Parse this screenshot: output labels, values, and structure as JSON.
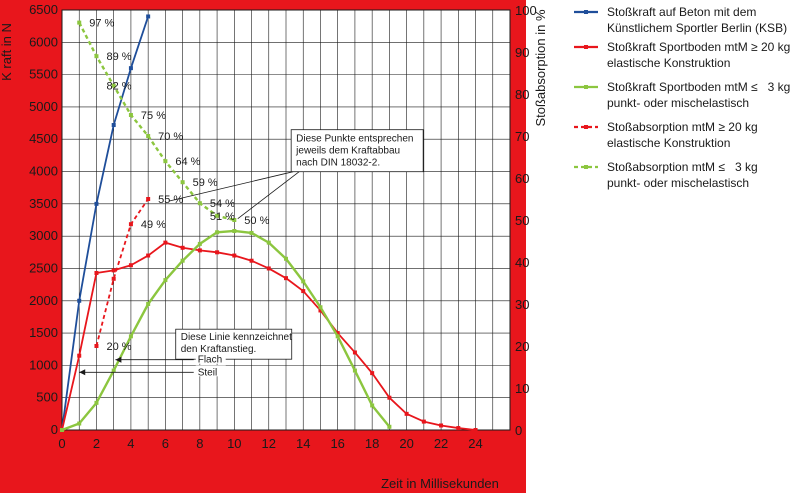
{
  "chart_data": {
    "type": "line",
    "xlabel": "Zeit in Millisekunden",
    "ylabel_left": "K raft in N",
    "ylabel_right": "Stoßabsorption in %",
    "xlim": [
      0,
      26
    ],
    "ylim_left": [
      0,
      6500
    ],
    "ylim_right": [
      0,
      100
    ],
    "x_ticks": [
      0,
      2,
      4,
      6,
      8,
      10,
      12,
      14,
      16,
      18,
      20,
      22,
      24
    ],
    "y_ticks_left": [
      0,
      500,
      1000,
      1500,
      2000,
      2500,
      3000,
      3500,
      4000,
      4500,
      5000,
      5500,
      6000,
      6500
    ],
    "y_ticks_right": [
      0,
      10,
      20,
      30,
      40,
      50,
      60,
      70,
      80,
      90,
      100
    ],
    "grid": true,
    "legend_position": "right",
    "series": [
      {
        "name": "Stoßkraft auf Beton mit dem Künstlichem Sportler Berlin (KSB)",
        "legend_lines": [
          "Stoßkraft auf Beton mit dem",
          "Künstlichem Sportler Berlin (KSB)"
        ],
        "color": "#1f4e9a",
        "dash": "solid",
        "axis": "left",
        "x": [
          0,
          1,
          2,
          3,
          4,
          5
        ],
        "y": [
          0,
          2000,
          3500,
          4720,
          5600,
          6400
        ]
      },
      {
        "name": "Stoßkraft Sportboden mtM ≥ 20 kg elastische Konstruktion",
        "legend_lines": [
          "Stoßkraft Sportboden mtM ≥ 20 kg",
          "elastische Konstruktion"
        ],
        "color": "#e8161c",
        "dash": "solid",
        "axis": "left",
        "x": [
          0,
          1,
          2,
          3,
          4,
          5,
          6,
          7,
          8,
          9,
          10,
          11,
          12,
          13,
          14,
          15,
          16,
          17,
          18,
          19,
          20,
          21,
          22,
          23,
          24
        ],
        "y": [
          0,
          1150,
          2430,
          2470,
          2550,
          2700,
          2900,
          2820,
          2780,
          2750,
          2700,
          2620,
          2500,
          2350,
          2150,
          1850,
          1500,
          1200,
          880,
          500,
          250,
          130,
          70,
          30,
          0
        ]
      },
      {
        "name": "Stoßkraft Sportboden mtM ≤ 3 kg punkt- oder mischelastisch",
        "legend_lines": [
          "Stoßkraft Sportboden mtM ≤   3 kg",
          "punkt- oder mischelastisch"
        ],
        "color": "#8cc63f",
        "dash": "solid",
        "axis": "left",
        "x": [
          0,
          1,
          2,
          3,
          4,
          5,
          6,
          7,
          8,
          9,
          10,
          11,
          12,
          13,
          14,
          15,
          16,
          17,
          18,
          19
        ],
        "y": [
          0,
          100,
          420,
          920,
          1450,
          1950,
          2320,
          2620,
          2880,
          3060,
          3080,
          3050,
          2900,
          2650,
          2300,
          1900,
          1450,
          920,
          380,
          50
        ]
      },
      {
        "name": "Stoßabsorption mtM ≥ 20 kg elastische Konstruktion",
        "legend_lines": [
          "Stoßabsorption mtM ≥ 20 kg",
          "elastische Konstruktion"
        ],
        "color": "#e8161c",
        "dash": "dashed",
        "axis": "right",
        "x": [
          2,
          3,
          4,
          5
        ],
        "y": [
          20,
          36,
          49,
          55
        ]
      },
      {
        "name": "Stoßabsorption mtM ≤ 3 kg punkt- oder mischelastisch",
        "legend_lines": [
          "Stoßabsorption mtM ≤   3 kg",
          "punkt- oder mischelastisch"
        ],
        "color": "#8cc63f",
        "dash": "dashed",
        "axis": "right",
        "x": [
          1,
          2,
          3,
          4,
          5,
          6,
          7,
          8,
          9,
          10
        ],
        "y": [
          97,
          89,
          82,
          75,
          70,
          64,
          59,
          54,
          51,
          50
        ]
      }
    ],
    "point_labels": [
      {
        "text": "97 %",
        "x": 1,
        "y": 97
      },
      {
        "text": "89 %",
        "x": 2,
        "y": 89
      },
      {
        "text": "82 %",
        "x": 2,
        "y": 82
      },
      {
        "text": "75 %",
        "x": 4,
        "y": 75
      },
      {
        "text": "70 %",
        "x": 5,
        "y": 70
      },
      {
        "text": "64 %",
        "x": 6,
        "y": 64
      },
      {
        "text": "59 %",
        "x": 7,
        "y": 59
      },
      {
        "text": "54 %",
        "x": 8,
        "y": 54
      },
      {
        "text": "51 %",
        "x": 8,
        "y": 51
      },
      {
        "text": "50 %",
        "x": 10,
        "y": 50
      },
      {
        "text": "55 %",
        "x": 5,
        "y": 55
      },
      {
        "text": "49 %",
        "x": 4,
        "y": 49
      },
      {
        "text": "20 %",
        "x": 2,
        "y": 20
      }
    ],
    "annotations": [
      {
        "id": "punkte",
        "lines": [
          "Diese Punkte entsprechen",
          "jeweils dem Kraftabbau",
          "nach DIN 18032-2."
        ]
      },
      {
        "id": "linie",
        "lines": [
          "Diese Linie kennzeichnet",
          "den Kraftanstieg."
        ],
        "labels": [
          "Flach",
          "Steil"
        ]
      }
    ]
  }
}
